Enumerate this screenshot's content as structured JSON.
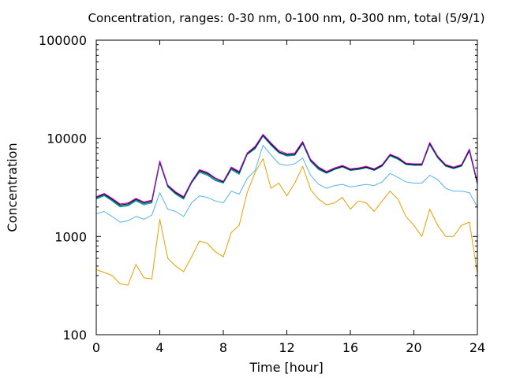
{
  "chart_data": {
    "type": "line",
    "title": "Concentration, ranges: 0-30 nm, 0-100 nm, 0-300 nm, total (5/9/1)",
    "xlabel": "Time [hour]",
    "ylabel": "Concentration",
    "xlim": [
      0,
      24
    ],
    "ylim": [
      100,
      100000
    ],
    "yscale": "log",
    "grid": false,
    "legend": "none",
    "x_ticks": [
      0,
      4,
      8,
      12,
      16,
      20,
      24
    ],
    "x_tick_labels": [
      "0",
      "4",
      "8",
      "12",
      "16",
      "20",
      "24"
    ],
    "y_ticks": [
      100,
      1000,
      10000,
      100000
    ],
    "y_tick_labels": [
      "100",
      "1000",
      "10000",
      "100000"
    ],
    "x": [
      0,
      0.5,
      1,
      1.5,
      2,
      2.5,
      3,
      3.5,
      4,
      4.5,
      5,
      5.5,
      6,
      6.5,
      7,
      7.5,
      8,
      8.5,
      9,
      9.5,
      10,
      10.5,
      11,
      11.5,
      12,
      12.5,
      13,
      13.5,
      14,
      14.5,
      15,
      15.5,
      16,
      16.5,
      17,
      17.5,
      18,
      18.5,
      19,
      19.5,
      20,
      20.5,
      21,
      21.5,
      22,
      22.5,
      23,
      23.5,
      24
    ],
    "series": [
      {
        "color": "#e69f00",
        "values": [
          460,
          430,
          400,
          330,
          320,
          520,
          380,
          370,
          1500,
          600,
          500,
          440,
          620,
          900,
          850,
          700,
          620,
          1100,
          1300,
          2800,
          4500,
          6200,
          3100,
          3500,
          2600,
          3500,
          5200,
          3000,
          2400,
          2100,
          2200,
          2500,
          1900,
          2300,
          2200,
          1800,
          2300,
          2900,
          2400,
          1600,
          1300,
          1000,
          1900,
          1300,
          1000,
          1000,
          1300,
          1400,
          420
        ]
      },
      {
        "color": "#56b4e9",
        "values": [
          1700,
          1800,
          1600,
          1400,
          1450,
          1600,
          1500,
          1650,
          2800,
          1900,
          1800,
          1600,
          2200,
          2600,
          2500,
          2300,
          2200,
          2900,
          2700,
          3900,
          4700,
          8500,
          6800,
          5500,
          5300,
          5500,
          6300,
          4200,
          3400,
          3100,
          3300,
          3400,
          3200,
          3300,
          3400,
          3300,
          3600,
          4400,
          4000,
          3600,
          3500,
          3500,
          4200,
          3800,
          3100,
          2900,
          2900,
          2800,
          2000
        ]
      },
      {
        "color": "#009e73",
        "values": [
          2400,
          2600,
          2300,
          2000,
          2050,
          2300,
          2100,
          2200,
          5600,
          3200,
          2700,
          2400,
          3500,
          4500,
          4200,
          3700,
          3500,
          4800,
          4300,
          6800,
          7800,
          10500,
          8500,
          7100,
          6600,
          6700,
          8800,
          5800,
          4800,
          4400,
          4800,
          5100,
          4700,
          4800,
          5000,
          4700,
          5200,
          6600,
          6100,
          5400,
          5300,
          5300,
          8600,
          6300,
          5200,
          4900,
          5200,
          7400,
          3400
        ]
      },
      {
        "color": "#0072b2",
        "values": [
          2450,
          2650,
          2350,
          2050,
          2100,
          2350,
          2150,
          2250,
          5700,
          3250,
          2750,
          2450,
          3550,
          4600,
          4300,
          3800,
          3550,
          4900,
          4400,
          6900,
          7900,
          10600,
          8600,
          7200,
          6700,
          6800,
          8900,
          5900,
          4900,
          4450,
          4850,
          5150,
          4750,
          4850,
          5050,
          4750,
          5250,
          6700,
          6200,
          5450,
          5350,
          5350,
          8700,
          6400,
          5250,
          4950,
          5250,
          7500,
          3450
        ]
      },
      {
        "color": "#000000",
        "values": [
          2500,
          2700,
          2400,
          2100,
          2150,
          2400,
          2200,
          2300,
          5800,
          3300,
          2800,
          2500,
          3600,
          4700,
          4400,
          3900,
          3600,
          5000,
          4500,
          7000,
          8100,
          10800,
          8800,
          7300,
          6800,
          6900,
          9100,
          6000,
          5000,
          4500,
          4900,
          5200,
          4800,
          4900,
          5100,
          4800,
          5300,
          6800,
          6300,
          5500,
          5400,
          5400,
          8900,
          6500,
          5300,
          5000,
          5300,
          7600,
          3500
        ]
      },
      {
        "color": "#cc00cc",
        "values": [
          2550,
          2750,
          2450,
          2150,
          2200,
          2450,
          2250,
          2350,
          5900,
          3350,
          2850,
          2550,
          3650,
          4800,
          4500,
          3950,
          3650,
          5100,
          4600,
          7100,
          8300,
          11000,
          9000,
          7500,
          7000,
          7100,
          9300,
          6100,
          5100,
          4600,
          5000,
          5300,
          4900,
          5000,
          5200,
          4900,
          5400,
          6900,
          6400,
          5600,
          5500,
          5500,
          9100,
          6600,
          5400,
          5100,
          5400,
          7800,
          3600
        ]
      }
    ]
  }
}
